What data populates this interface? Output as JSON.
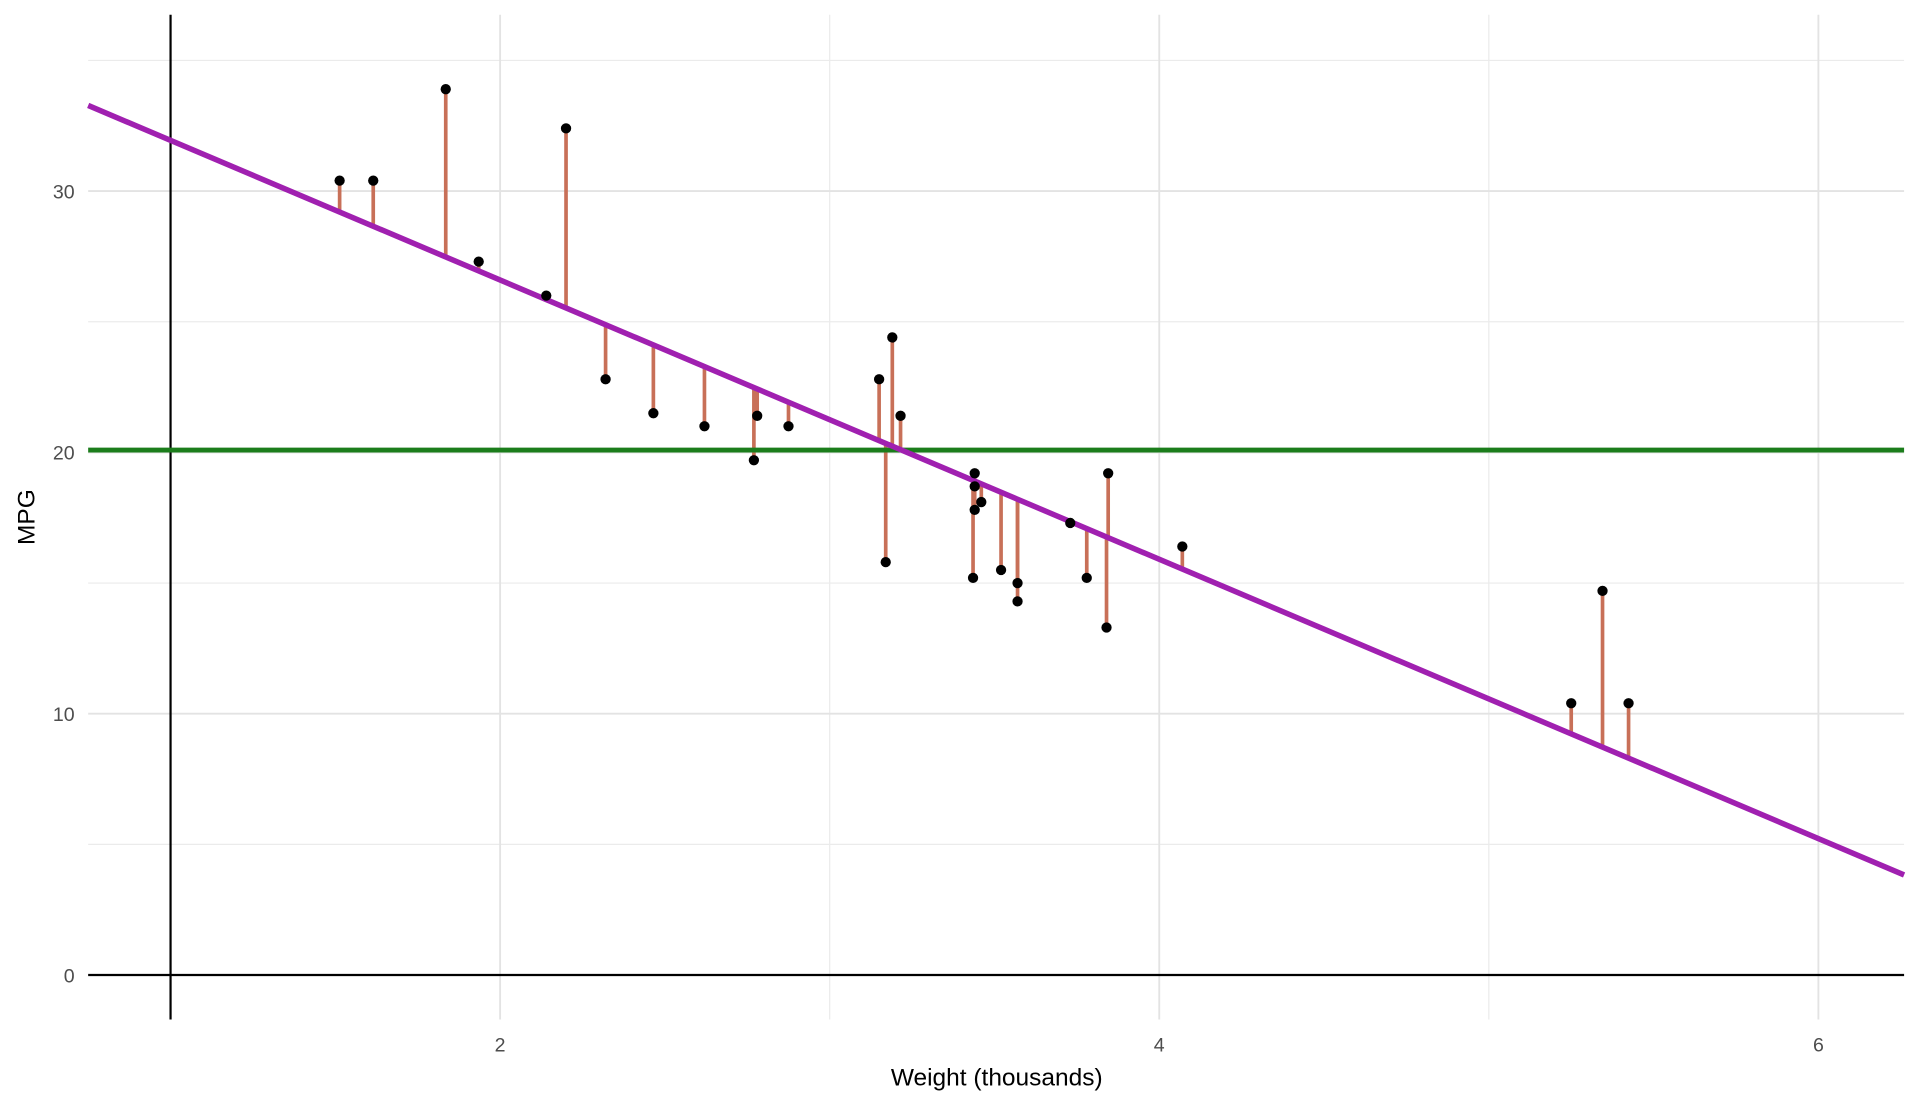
{
  "chart_data": {
    "type": "scatter",
    "title": "",
    "xlabel": "Weight (thousands)",
    "ylabel": "MPG",
    "xlim": [
      0.75,
      6.26
    ],
    "ylim": [
      -1.7,
      36.75
    ],
    "x_ticks": [
      2,
      4,
      6
    ],
    "x_tick_labels": [
      "2",
      "4",
      "6"
    ],
    "y_ticks": [
      0,
      10,
      20,
      30
    ],
    "y_tick_labels": [
      "0",
      "10",
      "20",
      "30"
    ],
    "grid": true,
    "points": {
      "x": [
        2.62,
        2.875,
        2.32,
        3.215,
        3.44,
        3.46,
        3.57,
        3.19,
        3.15,
        3.44,
        3.44,
        4.07,
        3.73,
        3.78,
        5.25,
        5.424,
        5.345,
        2.2,
        1.615,
        1.835,
        2.465,
        3.52,
        3.435,
        3.84,
        3.845,
        1.935,
        2.14,
        1.513,
        3.17,
        2.77,
        3.57,
        2.78
      ],
      "y": [
        21.0,
        21.0,
        22.8,
        21.4,
        18.7,
        18.1,
        14.3,
        24.4,
        22.8,
        19.2,
        17.8,
        16.4,
        17.3,
        15.2,
        10.4,
        10.4,
        14.7,
        32.4,
        30.4,
        33.9,
        21.5,
        15.5,
        15.2,
        13.3,
        19.2,
        27.3,
        26.0,
        30.4,
        15.8,
        19.7,
        15.0,
        21.4
      ]
    },
    "regression_line": {
      "intercept": 37.285,
      "slope": -5.344,
      "color": "#a020b0"
    },
    "mean_line": {
      "y": 20.09,
      "color": "#1b7d1b"
    },
    "residual_color": "#c87058",
    "point_color": "#000000",
    "reference_lines": {
      "vertical_x": 1,
      "horizontal_y": 0
    }
  }
}
